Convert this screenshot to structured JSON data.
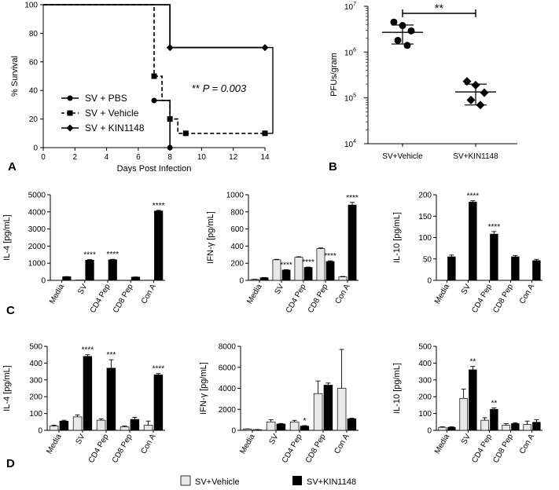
{
  "panel_labels": {
    "a": "A",
    "b": "B",
    "c": "C",
    "d": "D"
  },
  "legend": {
    "vehicle": "SV+Vehicle",
    "kin": "SV+KIN1148"
  },
  "colors": {
    "vehicle_fill": "#e8e8e8",
    "kin_fill": "#000000"
  },
  "chart_data": [
    {
      "id": "A",
      "type": "line",
      "xlabel": "Days Post Infection",
      "ylabel": "% Survival",
      "xlim": [
        0,
        14
      ],
      "ylim": [
        0,
        100
      ],
      "xticks": [
        "0",
        "2",
        "4",
        "6",
        "8",
        "10",
        "12",
        "14"
      ],
      "yticks": [
        "0",
        "20",
        "40",
        "60",
        "80",
        "100"
      ],
      "annotation_stars": "**",
      "annotation_text": "P = 0.003",
      "series": [
        {
          "name": "SV + PBS",
          "style": "solid",
          "marker": "circle",
          "steps": [
            [
              0,
              100
            ],
            [
              8,
              100
            ],
            [
              8,
              70
            ],
            [
              14,
              70
            ]
          ],
          "points": [
            [
              7,
              33
            ],
            [
              8,
              0
            ]
          ]
        },
        {
          "name": "SV + Vehicle",
          "style": "dashed",
          "marker": "square",
          "steps": [
            [
              0,
              100
            ],
            [
              7,
              100
            ],
            [
              7,
              50
            ],
            [
              7.5,
              50
            ],
            [
              7.5,
              33
            ],
            [
              8,
              33
            ],
            [
              8,
              20
            ],
            [
              8.5,
              20
            ],
            [
              8.5,
              10
            ],
            [
              14,
              10
            ]
          ],
          "points": [
            [
              7,
              50
            ],
            [
              8,
              20
            ],
            [
              9,
              10
            ],
            [
              14,
              10
            ]
          ]
        },
        {
          "name": "SV + KIN1148",
          "style": "solid",
          "marker": "diamond",
          "steps": [
            [
              0,
              100
            ],
            [
              8,
              100
            ],
            [
              8,
              70
            ],
            [
              14,
              70
            ]
          ],
          "points": [
            [
              8,
              70
            ],
            [
              14,
              70
            ]
          ]
        }
      ]
    },
    {
      "id": "B",
      "type": "scatter",
      "ylabel": "PFUs/gram",
      "yscale": "log",
      "ylim": [
        10000,
        10000000
      ],
      "ytick_mantissa": [
        "10",
        "10",
        "10",
        "10"
      ],
      "ytick_exp": [
        "4",
        "5",
        "6",
        "7"
      ],
      "categories": [
        "SV+Vehicle",
        "SV+KIN1148"
      ],
      "significance": "**",
      "groups": [
        {
          "marker": "circle",
          "values": [
            4500000,
            3800000,
            2900000,
            1800000,
            1400000
          ],
          "mean": 2700000,
          "sd_low": 1500000,
          "sd_high": 3900000
        },
        {
          "marker": "diamond",
          "values": [
            230000,
            190000,
            130000,
            90000,
            70000
          ],
          "mean": 135000,
          "sd_low": 70000,
          "sd_high": 200000
        }
      ]
    },
    {
      "id": "C1",
      "type": "bar",
      "ylabel": "IL-4  [pg/mL]",
      "ylim": [
        0,
        5000
      ],
      "yticks": [
        "0",
        "1000",
        "2000",
        "3000",
        "4000",
        "5000"
      ],
      "categories": [
        "Media",
        "SV",
        "CD4 Pep",
        "CD8 Pep",
        "Con A"
      ],
      "series": [
        {
          "name": "SV+Vehicle",
          "values": [
            0,
            20,
            10,
            0,
            10
          ],
          "err": [
            0,
            0,
            0,
            0,
            0
          ]
        },
        {
          "name": "SV+KIN1148",
          "values": [
            210,
            1180,
            1200,
            190,
            4050
          ],
          "err": [
            10,
            30,
            30,
            10,
            40
          ]
        }
      ],
      "stars": [
        "",
        "****",
        "****",
        "",
        "****"
      ]
    },
    {
      "id": "C2",
      "type": "bar",
      "ylabel": "IFN-γ  [pg/mL]",
      "ylim": [
        0,
        1000
      ],
      "yticks": [
        "0",
        "200",
        "400",
        "600",
        "800",
        "1000"
      ],
      "categories": [
        "Media",
        "SV",
        "CD4 Pep",
        "CD8 Pep",
        "Con A"
      ],
      "series": [
        {
          "name": "SV+Vehicle",
          "values": [
            10,
            240,
            270,
            370,
            40
          ],
          "err": [
            2,
            5,
            5,
            8,
            5
          ]
        },
        {
          "name": "SV+KIN1148",
          "values": [
            30,
            120,
            150,
            220,
            880
          ],
          "err": [
            3,
            5,
            5,
            8,
            30
          ]
        }
      ],
      "stars": [
        "",
        "****",
        "****",
        "****",
        "****"
      ]
    },
    {
      "id": "C3",
      "type": "bar",
      "ylabel": "IL-10     [pg/mL]",
      "ylim": [
        0,
        200
      ],
      "yticks": [
        "0",
        "50",
        "100",
        "150",
        "200"
      ],
      "categories": [
        "Media",
        "SV",
        "CD4 Pep",
        "CD8 Pep",
        "Con A"
      ],
      "series": [
        {
          "name": "SV+Vehicle",
          "values": [
            0,
            0,
            0,
            0,
            0
          ],
          "err": [
            0,
            0,
            0,
            0,
            0
          ]
        },
        {
          "name": "SV+KIN1148",
          "values": [
            55,
            183,
            108,
            55,
            46
          ],
          "err": [
            4,
            3,
            6,
            3,
            3
          ]
        }
      ],
      "stars": [
        "",
        "****",
        "****",
        "",
        ""
      ]
    },
    {
      "id": "D1",
      "type": "bar",
      "ylabel": "IL-4 [pg/mL]",
      "ylim": [
        0,
        500
      ],
      "yticks": [
        "0",
        "100",
        "200",
        "300",
        "400",
        "500"
      ],
      "categories": [
        "Media",
        "SV",
        "CD4 Pep",
        "CD8 Pep",
        "Con A"
      ],
      "series": [
        {
          "name": "SV+Vehicle",
          "values": [
            25,
            80,
            60,
            20,
            30
          ],
          "err": [
            5,
            12,
            8,
            6,
            25
          ]
        },
        {
          "name": "SV+KIN1148",
          "values": [
            55,
            440,
            370,
            65,
            330
          ],
          "err": [
            5,
            10,
            50,
            12,
            8
          ]
        }
      ],
      "stars": [
        "",
        "****",
        "***",
        "",
        "****"
      ]
    },
    {
      "id": "D2",
      "type": "bar",
      "ylabel": "IFN-γ [pg/mL]",
      "ylim": [
        0,
        8000
      ],
      "yticks": [
        "0",
        "2000",
        "4000",
        "6000",
        "8000"
      ],
      "categories": [
        "Media",
        "SV",
        "CD4 Pep",
        "CD8 Pep",
        "Con A"
      ],
      "series": [
        {
          "name": "SV+Vehicle",
          "values": [
            120,
            800,
            800,
            3500,
            4000
          ],
          "err": [
            20,
            200,
            150,
            1200,
            3700
          ]
        },
        {
          "name": "SV+KIN1148",
          "values": [
            60,
            600,
            400,
            4300,
            1100
          ],
          "err": [
            10,
            50,
            50,
            200,
            50
          ]
        }
      ],
      "stars": [
        "",
        "",
        "*",
        "",
        ""
      ]
    },
    {
      "id": "D3",
      "type": "bar",
      "ylabel": "IL-10  [pg/mL]",
      "ylim": [
        0,
        500
      ],
      "yticks": [
        "0",
        "100",
        "200",
        "300",
        "400",
        "500"
      ],
      "categories": [
        "Media",
        "SV",
        "CD4 Pep",
        "CD8 Pep",
        "Con A"
      ],
      "series": [
        {
          "name": "SV+Vehicle",
          "values": [
            18,
            190,
            60,
            30,
            35
          ],
          "err": [
            3,
            55,
            15,
            10,
            20
          ]
        },
        {
          "name": "SV+KIN1148",
          "values": [
            18,
            360,
            125,
            40,
            48
          ],
          "err": [
            3,
            20,
            8,
            5,
            15
          ]
        }
      ],
      "stars": [
        "",
        "**",
        "**",
        "",
        ""
      ]
    }
  ]
}
